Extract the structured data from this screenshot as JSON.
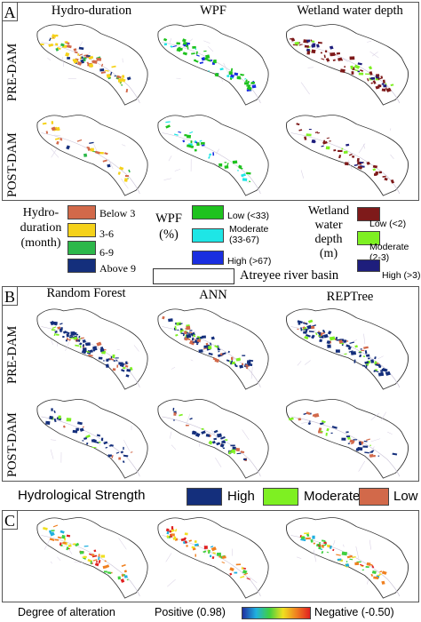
{
  "panels": {
    "A": {
      "label": "A",
      "columns": [
        "Hydro-duration",
        "WPF",
        "Wetland water depth"
      ],
      "rows": [
        "PRE-DAM",
        "POST-DAM"
      ]
    },
    "B": {
      "label": "B",
      "columns": [
        "Random Forest",
        "ANN",
        "REPTree"
      ],
      "rows": [
        "PRE-DAM",
        "POST-DAM"
      ]
    },
    "C": {
      "label": "C"
    }
  },
  "legend_a": {
    "hydro": {
      "title_line1": "Hydro-",
      "title_line2": "duration",
      "title_line3": "(month)",
      "items": [
        {
          "label": "Below 3",
          "color": "#d2694a"
        },
        {
          "label": "3-6",
          "color": "#f5d21a"
        },
        {
          "label": "6-9",
          "color": "#2db84a"
        },
        {
          "label": "Above 9",
          "color": "#142f7c"
        }
      ]
    },
    "wpf": {
      "title_line1": "WPF",
      "title_line2": "(%)",
      "items": [
        {
          "label": "Low (<33)",
          "color": "#1ec21e"
        },
        {
          "label_line1": "Moderate",
          "label_line2": "(33-67)",
          "color": "#1ee6e6"
        },
        {
          "label": "High (>67)",
          "color": "#1a2ee0"
        }
      ]
    },
    "depth": {
      "title_line1": "Wetland",
      "title_line2": "water",
      "title_line3": "depth",
      "title_line4": "(m)",
      "items": [
        {
          "label": "Low (<2)",
          "color": "#7e1a1a"
        },
        {
          "label_line1": "Moderate",
          "label_line2": "(2-3)",
          "color": "#7ef022"
        },
        {
          "label": "High (>3)",
          "color": "#1e1e7c"
        }
      ]
    },
    "basin_label": "Atreyee river basin"
  },
  "legend_b": {
    "title": "Hydrological Strength",
    "items": [
      {
        "label": "High",
        "color": "#142f7c"
      },
      {
        "label": "Moderate",
        "color": "#7ef022"
      },
      {
        "label": "Low",
        "color": "#d2694a"
      }
    ]
  },
  "legend_c": {
    "title": "Degree of alteration",
    "positive": "Positive (0.98)",
    "negative": "Negative (-0.50)",
    "gradient": [
      "#2030a0",
      "#20b0e0",
      "#40d040",
      "#f0e020",
      "#f08020",
      "#e02020"
    ]
  }
}
